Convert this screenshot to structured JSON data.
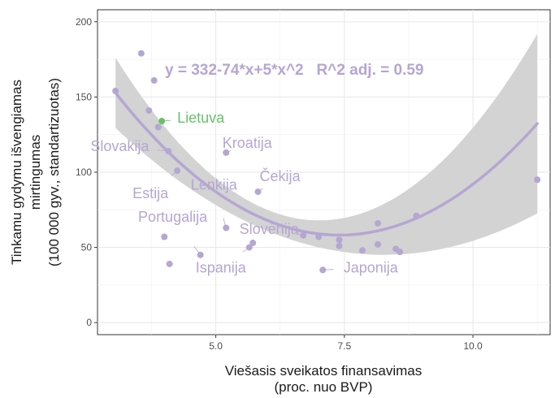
{
  "chart_data": {
    "type": "scatter",
    "xlabel": [
      "Viešasis sveikatos finansavimas",
      "(proc. nuo BVP)"
    ],
    "ylabel": [
      "Tinkamu gydymu išvengiamas",
      "mirtingumas",
      "(100 000 gyv., standartizuotas)"
    ],
    "xlim": [
      2.7,
      11.5
    ],
    "ylim": [
      -8,
      208
    ],
    "x_ticks": [
      5.0,
      7.5,
      10.0
    ],
    "x_tick_labels": [
      "5.0",
      "7.5",
      "10.0"
    ],
    "y_ticks": [
      0,
      50,
      100,
      150,
      200
    ],
    "y_tick_labels": [
      "0",
      "50",
      "100",
      "150",
      "200"
    ],
    "grid": true,
    "fit": {
      "label": "y = 332-74*x+5*x^2   R^2 adj. = 0.59",
      "coefficients": [
        332,
        -74,
        5
      ],
      "x_range": [
        3.05,
        11.25
      ],
      "color": "#b5a6d2",
      "band_color": "#d3d3d3"
    },
    "highlight_color": "#66c26a",
    "point_color": "#b5a6d2",
    "points": [
      {
        "x": 3.05,
        "y": 154
      },
      {
        "x": 3.55,
        "y": 179
      },
      {
        "x": 3.7,
        "y": 141
      },
      {
        "x": 3.8,
        "y": 161
      },
      {
        "x": 3.88,
        "y": 130
      },
      {
        "x": 3.95,
        "y": 134,
        "label": "Lietuva",
        "highlight": true
      },
      {
        "x": 4.0,
        "y": 57
      },
      {
        "x": 4.08,
        "y": 114,
        "label": "Slovakija"
      },
      {
        "x": 4.1,
        "y": 39
      },
      {
        "x": 4.25,
        "y": 101,
        "label": "Estija"
      },
      {
        "x": 4.7,
        "y": 45,
        "label": "Portugalija"
      },
      {
        "x": 5.2,
        "y": 113,
        "label": "Kroatija"
      },
      {
        "x": 5.2,
        "y": 63,
        "label": "Lenkija"
      },
      {
        "x": 5.65,
        "y": 50,
        "label": "Ispanija"
      },
      {
        "x": 5.72,
        "y": 53
      },
      {
        "x": 5.82,
        "y": 87,
        "label": "Čekija"
      },
      {
        "x": 6.7,
        "y": 58,
        "label": "Slovėnija"
      },
      {
        "x": 7.0,
        "y": 57
      },
      {
        "x": 7.08,
        "y": 35,
        "label": "Japonija"
      },
      {
        "x": 7.4,
        "y": 55
      },
      {
        "x": 7.4,
        "y": 51
      },
      {
        "x": 7.85,
        "y": 48
      },
      {
        "x": 8.15,
        "y": 66
      },
      {
        "x": 8.15,
        "y": 52
      },
      {
        "x": 8.5,
        "y": 49
      },
      {
        "x": 8.58,
        "y": 47
      },
      {
        "x": 8.9,
        "y": 71
      },
      {
        "x": 11.25,
        "y": 95
      }
    ]
  }
}
